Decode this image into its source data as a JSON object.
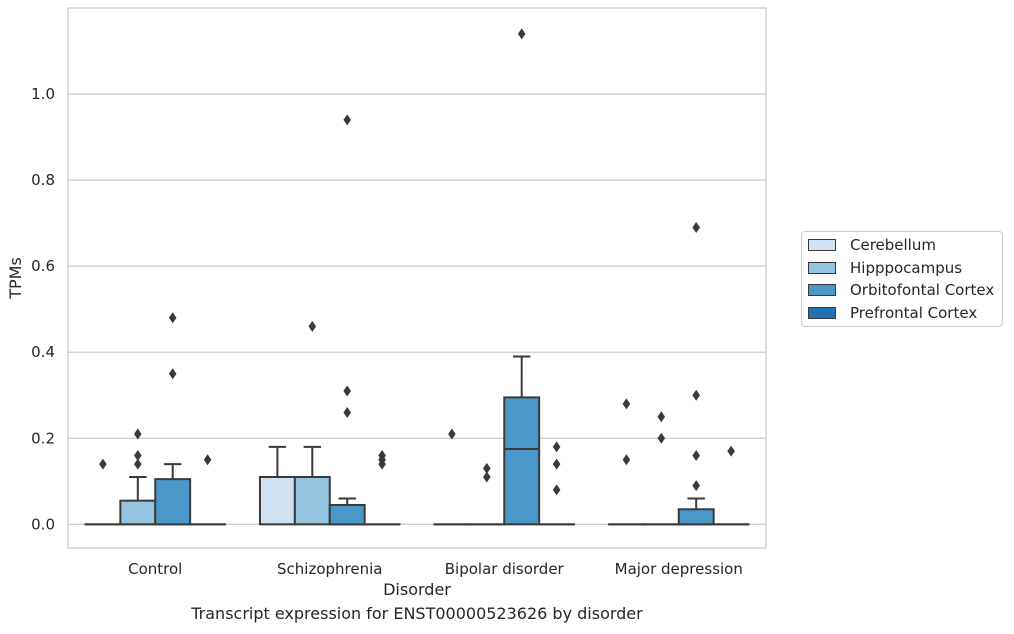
{
  "chart_data": {
    "type": "box",
    "caption": "Transcript expression for ENST00000523626 by disorder",
    "xlabel": "Disorder",
    "ylabel": "TPMs",
    "ylim": [
      -0.055,
      1.2
    ],
    "yticks": [
      "0.0",
      "0.2",
      "0.4",
      "0.6",
      "0.8",
      "1.0"
    ],
    "ytick_values": [
      0.0,
      0.2,
      0.4,
      0.6,
      0.8,
      1.0
    ],
    "grid": "horizontal",
    "legend_position": "right",
    "categories": [
      "Control",
      "Schizophrenia",
      "Bipolar disorder",
      "Major depression"
    ],
    "series": [
      {
        "name": "Cerebellum",
        "color": "#d0e1f2",
        "boxes": [
          {
            "q1": 0,
            "median": 0,
            "q3": 0,
            "whislo": 0,
            "whishi": 0,
            "fliers": [
              0.14
            ]
          },
          {
            "q1": 0,
            "median": 0.11,
            "q3": 0.11,
            "whislo": 0,
            "whishi": 0.18,
            "fliers": []
          },
          {
            "q1": 0,
            "median": 0,
            "q3": 0,
            "whislo": 0,
            "whishi": 0,
            "fliers": [
              0.21
            ]
          },
          {
            "q1": 0,
            "median": 0,
            "q3": 0,
            "whislo": 0,
            "whishi": 0,
            "fliers": [
              0.28,
              0.15
            ]
          }
        ]
      },
      {
        "name": "Hipppocampus",
        "color": "#94c4df",
        "boxes": [
          {
            "q1": 0,
            "median": 0,
            "q3": 0.055,
            "whislo": 0,
            "whishi": 0.11,
            "fliers": [
              0.21,
              0.16,
              0.14
            ]
          },
          {
            "q1": 0,
            "median": 0.11,
            "q3": 0.11,
            "whislo": 0,
            "whishi": 0.18,
            "fliers": [
              0.46
            ]
          },
          {
            "q1": 0,
            "median": 0,
            "q3": 0,
            "whislo": 0,
            "whishi": 0,
            "fliers": [
              0.13,
              0.11
            ]
          },
          {
            "q1": 0,
            "median": 0,
            "q3": 0,
            "whislo": 0,
            "whishi": 0,
            "fliers": [
              0.25,
              0.2
            ]
          }
        ]
      },
      {
        "name": "Orbitofontal Cortex",
        "color": "#4a98c9",
        "boxes": [
          {
            "q1": 0,
            "median": 0,
            "q3": 0.105,
            "whislo": 0,
            "whishi": 0.14,
            "fliers": [
              0.48,
              0.35
            ]
          },
          {
            "q1": 0,
            "median": 0,
            "q3": 0.045,
            "whislo": 0,
            "whishi": 0.06,
            "fliers": [
              0.94,
              0.31,
              0.26
            ]
          },
          {
            "q1": 0,
            "median": 0.175,
            "q3": 0.295,
            "whislo": 0,
            "whishi": 0.39,
            "fliers": [
              1.14
            ]
          },
          {
            "q1": 0,
            "median": 0,
            "q3": 0.035,
            "whislo": 0,
            "whishi": 0.06,
            "fliers": [
              0.69,
              0.3,
              0.16,
              0.09
            ]
          }
        ]
      },
      {
        "name": "Prefrontal Cortex",
        "color": "#2171b5",
        "boxes": [
          {
            "q1": 0,
            "median": 0,
            "q3": 0,
            "whislo": 0,
            "whishi": 0,
            "fliers": [
              0.15
            ]
          },
          {
            "q1": 0,
            "median": 0,
            "q3": 0,
            "whislo": 0,
            "whishi": 0,
            "fliers": [
              0.16,
              0.15,
              0.14
            ]
          },
          {
            "q1": 0,
            "median": 0,
            "q3": 0,
            "whislo": 0,
            "whishi": 0,
            "fliers": [
              0.18,
              0.14,
              0.08
            ]
          },
          {
            "q1": 0,
            "median": 0,
            "q3": 0,
            "whislo": 0,
            "whishi": 0,
            "fliers": [
              0.17
            ]
          }
        ]
      }
    ]
  }
}
